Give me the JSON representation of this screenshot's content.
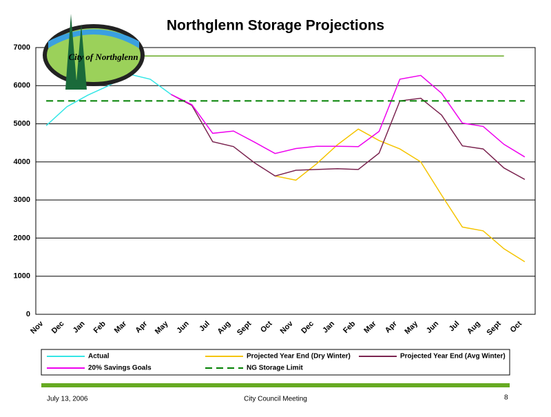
{
  "chart_data": {
    "type": "line",
    "title": "Northglenn Storage Projections",
    "logo_text": "City of Northglenn",
    "categories": [
      "Nov",
      "Dec",
      "Jan",
      "Feb",
      "Mar",
      "Apr",
      "May",
      "Jun",
      "Jul",
      "Aug",
      "Sept",
      "Oct",
      "Nov",
      "Dec",
      "Jan",
      "Feb",
      "Mar",
      "Apr",
      "May",
      "Jun",
      "Jul",
      "Aug",
      "Sept",
      "Oct"
    ],
    "ylim": [
      0,
      7000
    ],
    "yticks": [
      0,
      1000,
      2000,
      3000,
      4000,
      5000,
      6000,
      7000
    ],
    "grid": true,
    "series": [
      {
        "name": "Actual",
        "color": "#33e6e6",
        "values": [
          4950,
          5450,
          5750,
          6000,
          6300,
          6170,
          5770,
          null,
          null,
          null,
          null,
          null,
          null,
          null,
          null,
          null,
          null,
          null,
          null,
          null,
          null,
          null,
          null,
          null
        ]
      },
      {
        "name": "Projected Year End (Dry Winter)",
        "color": "#f5c400",
        "values": [
          null,
          null,
          null,
          null,
          null,
          null,
          null,
          null,
          null,
          null,
          null,
          3630,
          3520,
          3950,
          4450,
          4860,
          4560,
          4340,
          4000,
          3130,
          2290,
          2190,
          1720,
          1380
        ]
      },
      {
        "name": "Projected Year End (Avg Winter)",
        "color": "#7b2450",
        "values": [
          null,
          null,
          null,
          null,
          null,
          null,
          5770,
          5480,
          4530,
          4400,
          3980,
          3630,
          3780,
          3800,
          3820,
          3800,
          4230,
          5600,
          5670,
          5230,
          4420,
          4340,
          3840,
          3540
        ]
      },
      {
        "name": "20% Savings Goals",
        "color": "#ee00ee",
        "values": [
          null,
          null,
          null,
          null,
          null,
          null,
          5770,
          5500,
          4750,
          4810,
          4520,
          4220,
          4350,
          4410,
          4410,
          4400,
          4800,
          6170,
          6270,
          5800,
          5020,
          4930,
          4460,
          4130
        ]
      },
      {
        "name": "NG Storage Limit",
        "color": "#008000",
        "dash": true,
        "values": [
          5600,
          5600,
          5600,
          5600,
          5600,
          5600,
          5600,
          5600,
          5600,
          5600,
          5600,
          5600,
          5600,
          5600,
          5600,
          5600,
          5600,
          5600,
          5600,
          5600,
          5600,
          5600,
          5600,
          5600
        ]
      },
      {
        "color": "#66aa22",
        "values": [
          null,
          null,
          null,
          null,
          6780,
          6780,
          6780,
          6780,
          6780,
          6780,
          6780,
          6780,
          6780,
          6780,
          6780,
          6780,
          6780,
          6780,
          6780,
          6780,
          6780,
          6780,
          6780,
          null
        ]
      }
    ]
  },
  "footer": {
    "date": "July 13, 2006",
    "center": "City Council Meeting",
    "page": "8"
  }
}
